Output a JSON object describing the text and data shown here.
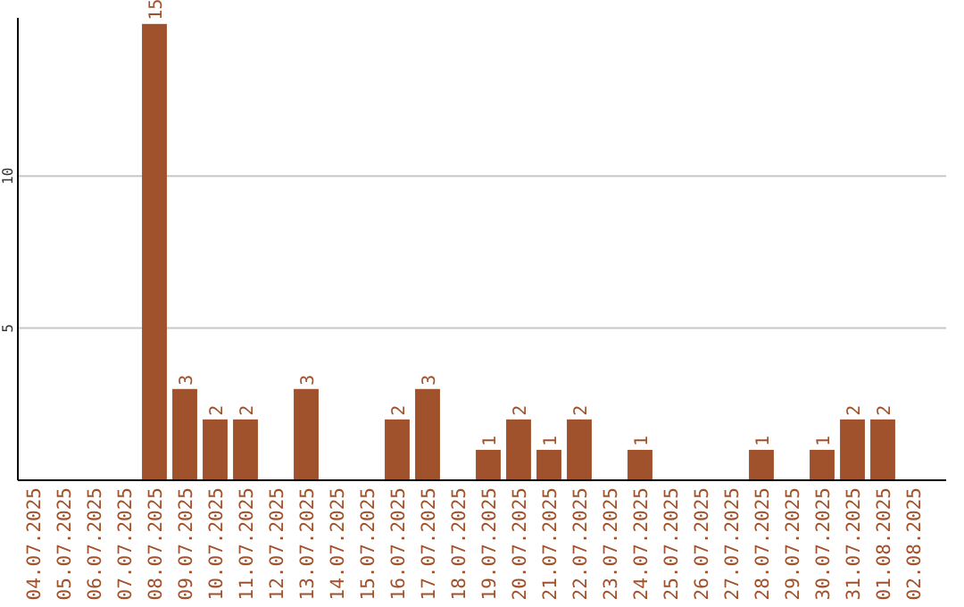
{
  "chart_data": {
    "type": "bar",
    "categories": [
      "04.07.2025",
      "05.07.2025",
      "06.07.2025",
      "07.07.2025",
      "08.07.2025",
      "09.07.2025",
      "10.07.2025",
      "11.07.2025",
      "12.07.2025",
      "13.07.2025",
      "14.07.2025",
      "15.07.2025",
      "16.07.2025",
      "17.07.2025",
      "18.07.2025",
      "19.07.2025",
      "20.07.2025",
      "21.07.2025",
      "22.07.2025",
      "23.07.2025",
      "24.07.2025",
      "25.07.2025",
      "26.07.2025",
      "27.07.2025",
      "28.07.2025",
      "29.07.2025",
      "30.07.2025",
      "31.07.2025",
      "01.08.2025",
      "02.08.2025"
    ],
    "values": [
      0,
      0,
      0,
      0,
      15,
      3,
      2,
      2,
      0,
      3,
      0,
      0,
      2,
      3,
      0,
      1,
      2,
      1,
      2,
      0,
      1,
      0,
      0,
      0,
      1,
      0,
      1,
      2,
      2,
      0
    ],
    "value_labels": [
      null,
      null,
      null,
      null,
      "15",
      "3",
      "2",
      "2",
      null,
      "3",
      null,
      null,
      "2",
      "3",
      null,
      "1",
      "2",
      "1",
      "2",
      null,
      "1",
      null,
      null,
      null,
      "1",
      null,
      "1",
      "2",
      "2",
      null
    ],
    "color": "#a0522d",
    "ylim": [
      0,
      15.2
    ],
    "yticks": [
      5,
      10
    ],
    "grid": "y"
  }
}
